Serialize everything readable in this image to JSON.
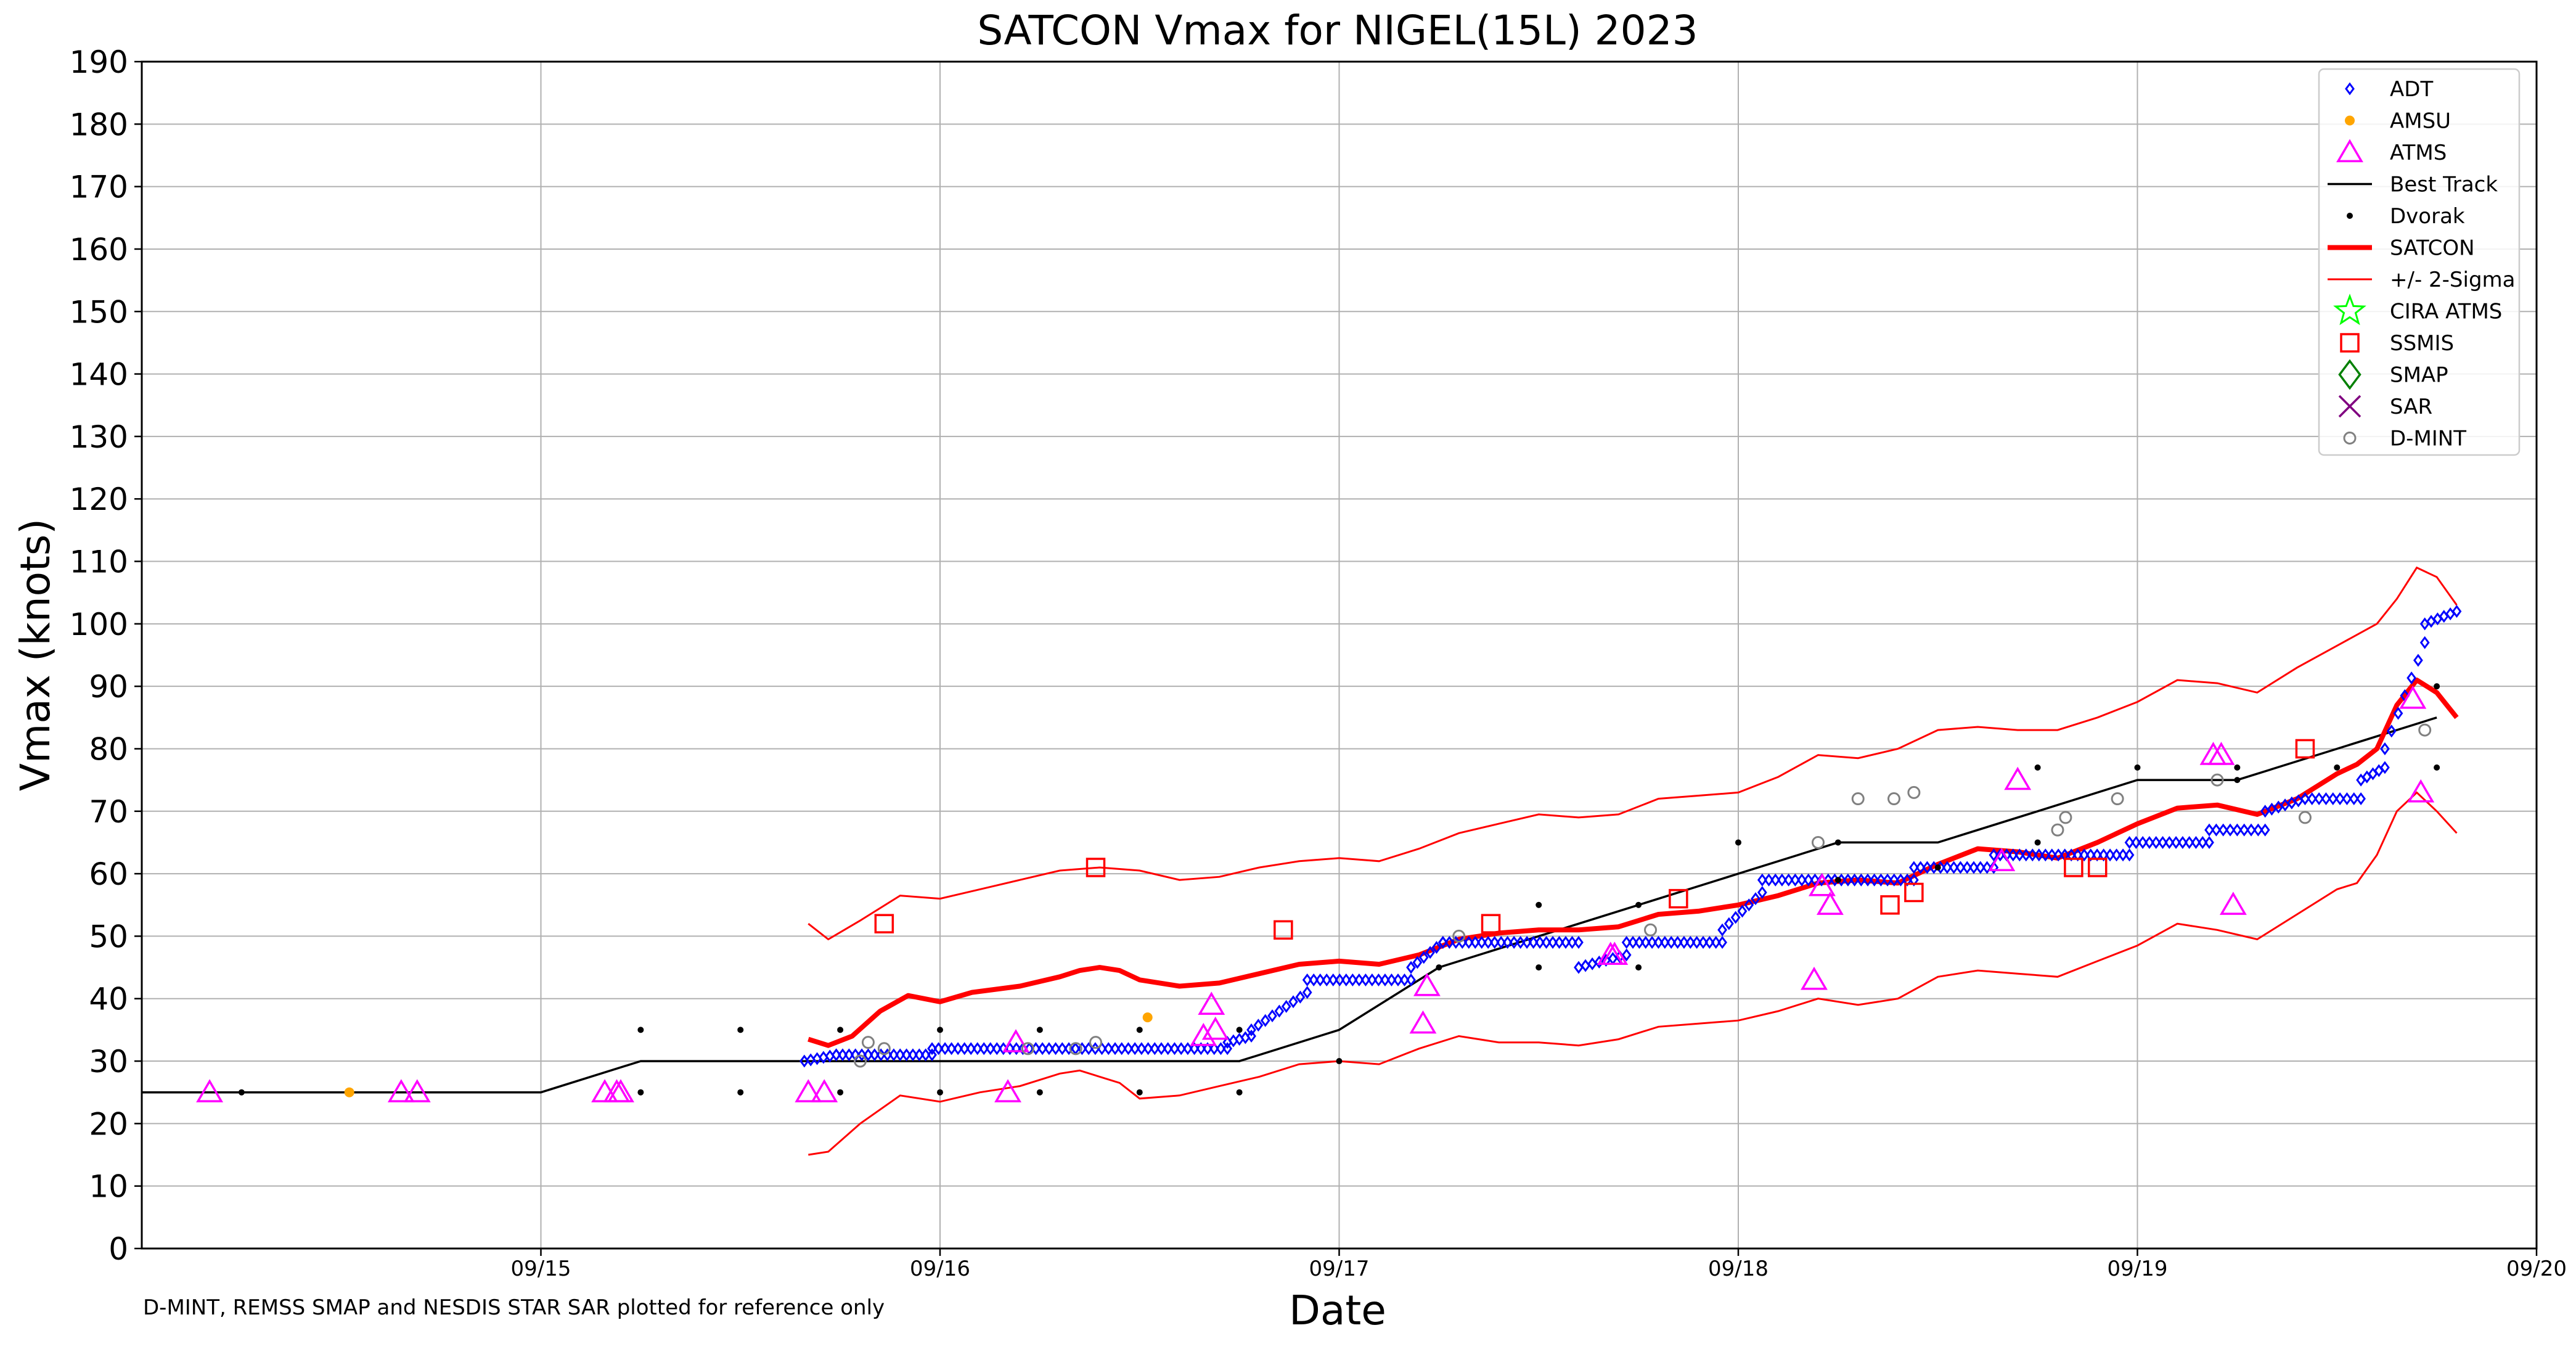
{
  "chart_data": {
    "type": "scatter",
    "title": "SATCON Vmax for NIGEL(15L) 2023",
    "xlabel": "Date",
    "ylabel": "Vmax (knots)",
    "footnote": "D-MINT, REMSS SMAP and NESDIS STAR SAR plotted for reference only",
    "xlim_days": [
      14.0,
      20.0
    ],
    "ylim": [
      0,
      190
    ],
    "yticks": [
      0,
      10,
      20,
      30,
      40,
      50,
      60,
      70,
      80,
      90,
      100,
      110,
      120,
      130,
      140,
      150,
      160,
      170,
      180,
      190
    ],
    "xticks": [
      {
        "day": 15,
        "label": "09/15"
      },
      {
        "day": 16,
        "label": "09/16"
      },
      {
        "day": 17,
        "label": "09/17"
      },
      {
        "day": 18,
        "label": "09/18"
      },
      {
        "day": 19,
        "label": "09/19"
      },
      {
        "day": 20,
        "label": "09/20"
      }
    ],
    "grid": true,
    "legend_position": "top-right",
    "legend": [
      {
        "label": "ADT",
        "marker": "diamond",
        "color": "#0000ff"
      },
      {
        "label": "AMSU",
        "marker": "dot",
        "color": "#ffa500"
      },
      {
        "label": "ATMS",
        "marker": "triangle",
        "color": "#ff00ff"
      },
      {
        "label": "Best Track",
        "marker": "line",
        "color": "#000000"
      },
      {
        "label": "Dvorak",
        "marker": "smalldot",
        "color": "#000000"
      },
      {
        "label": "SATCON",
        "marker": "thickline",
        "color": "#ff0000"
      },
      {
        "label": "+/- 2-Sigma",
        "marker": "thinline",
        "color": "#ff0000"
      },
      {
        "label": "CIRA ATMS",
        "marker": "star",
        "color": "#00ff00"
      },
      {
        "label": "SSMIS",
        "marker": "square",
        "color": "#ff0000"
      },
      {
        "label": "SMAP",
        "marker": "bigdiamond",
        "color": "#008000"
      },
      {
        "label": "SAR",
        "marker": "x",
        "color": "#800080"
      },
      {
        "label": "D-MINT",
        "marker": "circle",
        "color": "#808080"
      }
    ],
    "series": {
      "best_track": [
        [
          14,
          25
        ],
        [
          15,
          25
        ],
        [
          15.25,
          30
        ],
        [
          15.5,
          30
        ],
        [
          15.75,
          30
        ],
        [
          16,
          30
        ],
        [
          16.25,
          30
        ],
        [
          16.5,
          30
        ],
        [
          16.75,
          30
        ],
        [
          17,
          35
        ],
        [
          17.25,
          45
        ],
        [
          17.5,
          50
        ],
        [
          17.75,
          55
        ],
        [
          18,
          60
        ],
        [
          18.25,
          65
        ],
        [
          18.5,
          65
        ],
        [
          18.75,
          70
        ],
        [
          19,
          75
        ],
        [
          19.25,
          75
        ],
        [
          19.5,
          80
        ],
        [
          19.75,
          85
        ]
      ],
      "satcon": [
        [
          15.67,
          33.5
        ],
        [
          15.72,
          32.5
        ],
        [
          15.78,
          34
        ],
        [
          15.85,
          38
        ],
        [
          15.92,
          40.5
        ],
        [
          16,
          39.5
        ],
        [
          16.08,
          41
        ],
        [
          16.2,
          42
        ],
        [
          16.3,
          43.5
        ],
        [
          16.35,
          44.5
        ],
        [
          16.4,
          45
        ],
        [
          16.45,
          44.5
        ],
        [
          16.5,
          43
        ],
        [
          16.6,
          42
        ],
        [
          16.7,
          42.5
        ],
        [
          16.8,
          44
        ],
        [
          16.9,
          45.5
        ],
        [
          17,
          46
        ],
        [
          17.1,
          45.5
        ],
        [
          17.2,
          47
        ],
        [
          17.3,
          49.5
        ],
        [
          17.4,
          50.5
        ],
        [
          17.5,
          51
        ],
        [
          17.6,
          51
        ],
        [
          17.7,
          51.5
        ],
        [
          17.8,
          53.5
        ],
        [
          17.9,
          54
        ],
        [
          18,
          55
        ],
        [
          18.1,
          56.5
        ],
        [
          18.2,
          58.5
        ],
        [
          18.3,
          59
        ],
        [
          18.4,
          58.5
        ],
        [
          18.5,
          61.5
        ],
        [
          18.6,
          64
        ],
        [
          18.7,
          63.5
        ],
        [
          18.8,
          62.5
        ],
        [
          18.9,
          65
        ],
        [
          19,
          68
        ],
        [
          19.1,
          70.5
        ],
        [
          19.2,
          71
        ],
        [
          19.3,
          69.5
        ],
        [
          19.4,
          72
        ],
        [
          19.5,
          76
        ],
        [
          19.55,
          77.5
        ],
        [
          19.6,
          80
        ],
        [
          19.65,
          87
        ],
        [
          19.7,
          91
        ],
        [
          19.75,
          89
        ],
        [
          19.8,
          85
        ]
      ],
      "sigma_upper": [
        [
          15.67,
          52
        ],
        [
          15.72,
          49.5
        ],
        [
          15.8,
          52.5
        ],
        [
          15.9,
          56.5
        ],
        [
          16,
          56
        ],
        [
          16.1,
          57.5
        ],
        [
          16.2,
          59
        ],
        [
          16.3,
          60.5
        ],
        [
          16.4,
          61
        ],
        [
          16.5,
          60.5
        ],
        [
          16.6,
          59
        ],
        [
          16.7,
          59.5
        ],
        [
          16.8,
          61
        ],
        [
          16.9,
          62
        ],
        [
          17,
          62.5
        ],
        [
          17.1,
          62
        ],
        [
          17.2,
          64
        ],
        [
          17.3,
          66.5
        ],
        [
          17.4,
          68
        ],
        [
          17.5,
          69.5
        ],
        [
          17.6,
          69
        ],
        [
          17.7,
          69.5
        ],
        [
          17.8,
          72
        ],
        [
          17.9,
          72.5
        ],
        [
          18,
          73
        ],
        [
          18.1,
          75.5
        ],
        [
          18.2,
          79
        ],
        [
          18.3,
          78.5
        ],
        [
          18.4,
          80
        ],
        [
          18.5,
          83
        ],
        [
          18.6,
          83.5
        ],
        [
          18.7,
          83
        ],
        [
          18.8,
          83
        ],
        [
          18.9,
          85
        ],
        [
          19,
          87.5
        ],
        [
          19.1,
          91
        ],
        [
          19.2,
          90.5
        ],
        [
          19.3,
          89
        ],
        [
          19.4,
          93
        ],
        [
          19.5,
          96.5
        ],
        [
          19.6,
          100
        ],
        [
          19.65,
          104
        ],
        [
          19.7,
          109
        ],
        [
          19.75,
          107.5
        ],
        [
          19.8,
          103
        ]
      ],
      "sigma_lower": [
        [
          15.67,
          15
        ],
        [
          15.72,
          15.5
        ],
        [
          15.8,
          20
        ],
        [
          15.9,
          24.5
        ],
        [
          16,
          23.5
        ],
        [
          16.1,
          25
        ],
        [
          16.2,
          26
        ],
        [
          16.3,
          28
        ],
        [
          16.35,
          28.5
        ],
        [
          16.45,
          26.5
        ],
        [
          16.5,
          24
        ],
        [
          16.6,
          24.5
        ],
        [
          16.7,
          26
        ],
        [
          16.8,
          27.5
        ],
        [
          16.9,
          29.5
        ],
        [
          17,
          30
        ],
        [
          17.1,
          29.5
        ],
        [
          17.2,
          32
        ],
        [
          17.3,
          34
        ],
        [
          17.4,
          33
        ],
        [
          17.5,
          33
        ],
        [
          17.6,
          32.5
        ],
        [
          17.7,
          33.5
        ],
        [
          17.8,
          35.5
        ],
        [
          17.9,
          36
        ],
        [
          18,
          36.5
        ],
        [
          18.1,
          38
        ],
        [
          18.2,
          40
        ],
        [
          18.3,
          39
        ],
        [
          18.4,
          40
        ],
        [
          18.5,
          43.5
        ],
        [
          18.6,
          44.5
        ],
        [
          18.7,
          44
        ],
        [
          18.8,
          43.5
        ],
        [
          18.9,
          46
        ],
        [
          19,
          48.5
        ],
        [
          19.1,
          52
        ],
        [
          19.2,
          51
        ],
        [
          19.3,
          49.5
        ],
        [
          19.4,
          53.5
        ],
        [
          19.5,
          57.5
        ],
        [
          19.55,
          58.5
        ],
        [
          19.6,
          63
        ],
        [
          19.65,
          70
        ],
        [
          19.7,
          73
        ],
        [
          19.75,
          70
        ],
        [
          19.8,
          66.5
        ]
      ],
      "adt_segments": [
        {
          "from": 15.66,
          "to": 15.74,
          "v0": 30,
          "v1": 31
        },
        {
          "from": 15.74,
          "to": 15.98,
          "v0": 31,
          "v1": 31
        },
        {
          "from": 15.98,
          "to": 16.24,
          "v0": 32,
          "v1": 32
        },
        {
          "from": 16.24,
          "to": 16.72,
          "v0": 32,
          "v1": 32
        },
        {
          "from": 16.72,
          "to": 16.78,
          "v0": 33,
          "v1": 34
        },
        {
          "from": 16.78,
          "to": 16.92,
          "v0": 35,
          "v1": 41
        },
        {
          "from": 16.92,
          "to": 17.18,
          "v0": 43,
          "v1": 43
        },
        {
          "from": 17.18,
          "to": 17.26,
          "v0": 45,
          "v1": 49
        },
        {
          "from": 17.26,
          "to": 17.6,
          "v0": 49,
          "v1": 49
        },
        {
          "from": 17.6,
          "to": 17.72,
          "v0": 45,
          "v1": 47
        },
        {
          "from": 17.72,
          "to": 17.96,
          "v0": 49,
          "v1": 49
        },
        {
          "from": 17.96,
          "to": 18.06,
          "v0": 51,
          "v1": 57
        },
        {
          "from": 18.06,
          "to": 18.44,
          "v0": 59,
          "v1": 59
        },
        {
          "from": 18.44,
          "to": 18.64,
          "v0": 61,
          "v1": 61
        },
        {
          "from": 18.64,
          "to": 18.98,
          "v0": 63,
          "v1": 63
        },
        {
          "from": 18.98,
          "to": 19.18,
          "v0": 65,
          "v1": 65
        },
        {
          "from": 19.18,
          "to": 19.32,
          "v0": 67,
          "v1": 67
        },
        {
          "from": 19.32,
          "to": 19.42,
          "v0": 70,
          "v1": 72
        },
        {
          "from": 19.42,
          "to": 19.56,
          "v0": 72,
          "v1": 72
        },
        {
          "from": 19.56,
          "to": 19.62,
          "v0": 75,
          "v1": 77
        },
        {
          "from": 19.62,
          "to": 19.72,
          "v0": 80,
          "v1": 97
        },
        {
          "from": 19.72,
          "to": 19.8,
          "v0": 100,
          "v1": 102
        }
      ],
      "amsu": [
        [
          14.52,
          25
        ],
        [
          16.52,
          37
        ]
      ],
      "atms": [
        [
          14.17,
          25
        ],
        [
          14.65,
          25
        ],
        [
          14.69,
          25
        ],
        [
          15.16,
          25
        ],
        [
          15.19,
          25
        ],
        [
          15.2,
          25
        ],
        [
          15.67,
          25
        ],
        [
          15.71,
          25
        ],
        [
          16.17,
          25
        ],
        [
          16.19,
          33
        ],
        [
          16.66,
          34
        ],
        [
          16.68,
          39
        ],
        [
          16.69,
          35
        ],
        [
          17.21,
          36
        ],
        [
          17.22,
          42
        ],
        [
          17.68,
          47
        ],
        [
          17.69,
          47
        ],
        [
          18.19,
          43
        ],
        [
          18.21,
          58
        ],
        [
          18.23,
          55
        ],
        [
          18.66,
          62
        ],
        [
          18.7,
          75
        ],
        [
          19.19,
          79
        ],
        [
          19.21,
          79
        ],
        [
          19.24,
          55
        ],
        [
          19.69,
          88
        ],
        [
          19.71,
          73
        ]
      ],
      "dvorak": [
        [
          14.25,
          25
        ],
        [
          15.25,
          25
        ],
        [
          15.25,
          35
        ],
        [
          15.5,
          25
        ],
        [
          15.5,
          35
        ],
        [
          15.75,
          25
        ],
        [
          15.75,
          35
        ],
        [
          16,
          25
        ],
        [
          16,
          35
        ],
        [
          16.25,
          25
        ],
        [
          16.25,
          35
        ],
        [
          16.5,
          25
        ],
        [
          16.5,
          35
        ],
        [
          16.75,
          25
        ],
        [
          16.75,
          35
        ],
        [
          17,
          30
        ],
        [
          17.25,
          45
        ],
        [
          17.5,
          45
        ],
        [
          17.5,
          55
        ],
        [
          17.75,
          45
        ],
        [
          17.75,
          55
        ],
        [
          18,
          65
        ],
        [
          18.25,
          59
        ],
        [
          18.25,
          65
        ],
        [
          18.5,
          61
        ],
        [
          18.75,
          65
        ],
        [
          18.75,
          77
        ],
        [
          19,
          77
        ],
        [
          19.25,
          75
        ],
        [
          19.25,
          77
        ],
        [
          19.5,
          77
        ],
        [
          19.75,
          90
        ],
        [
          19.75,
          77
        ]
      ],
      "ssmis": [
        [
          15.86,
          52
        ],
        [
          16.39,
          61
        ],
        [
          16.86,
          51
        ],
        [
          17.38,
          52
        ],
        [
          17.85,
          56
        ],
        [
          18.38,
          55
        ],
        [
          18.44,
          57
        ],
        [
          18.84,
          61
        ],
        [
          18.9,
          61
        ],
        [
          19.42,
          80
        ]
      ],
      "dmint": [
        [
          15.82,
          33
        ],
        [
          15.8,
          30
        ],
        [
          15.86,
          32
        ],
        [
          16.22,
          32
        ],
        [
          16.34,
          32
        ],
        [
          16.39,
          33
        ],
        [
          17.3,
          50
        ],
        [
          17.78,
          51
        ],
        [
          18.2,
          65
        ],
        [
          18.3,
          72
        ],
        [
          18.39,
          72
        ],
        [
          18.44,
          73
        ],
        [
          18.8,
          67
        ],
        [
          18.82,
          69
        ],
        [
          18.95,
          72
        ],
        [
          19.2,
          75
        ],
        [
          19.42,
          69
        ],
        [
          19.72,
          83
        ]
      ]
    }
  }
}
